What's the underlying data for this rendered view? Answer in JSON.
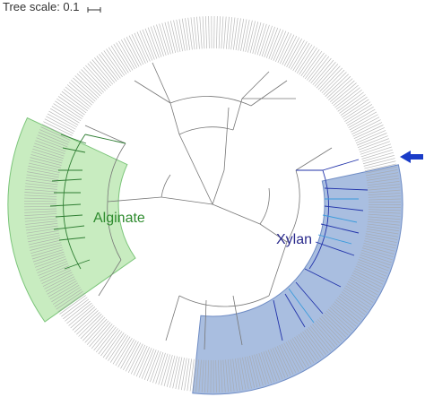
{
  "header": {
    "tree_scale": "Tree scale: 0.1"
  },
  "clades": [
    {
      "label": "Alginate"
    },
    {
      "label": "Xylan"
    }
  ]
}
